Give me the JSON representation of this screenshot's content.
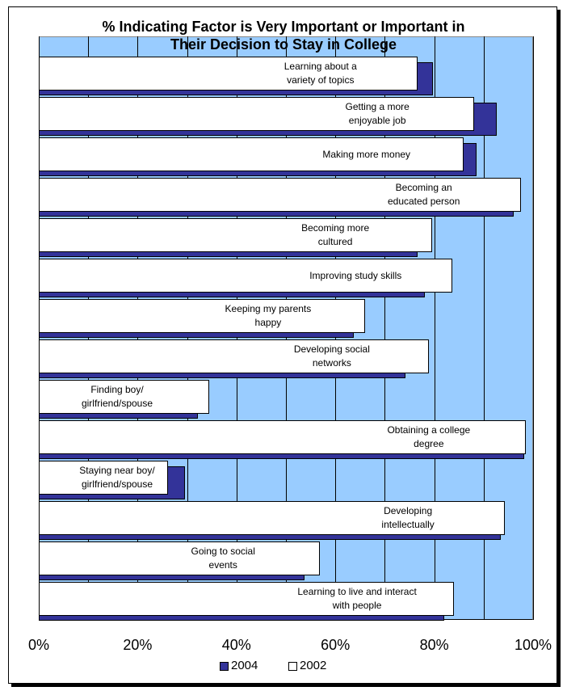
{
  "chart_data": {
    "type": "bar",
    "orientation": "horizontal",
    "title": "% Indicating Factor is Very Important or Important in\nTheir Decision to Stay in College",
    "categories": [
      "Learning about a\nvariety of topics",
      "Getting a more\nenjoyable job",
      "Making more money",
      "Becoming an\neducated person",
      "Becoming more\ncultured",
      "Improving study skills",
      "Keeping my parents\nhappy",
      "Developing social\nnetworks",
      "Finding boy/\ngirlfriend/spouse",
      "Obtaining a  college\ndegree",
      "Staying near boy/\ngirlfriend/spouse",
      "Developing\nintellectually",
      "Going to social\nevents",
      "Learning to live and interact\nwith people"
    ],
    "series": [
      {
        "name": "2004",
        "color": "#333399",
        "values": [
          79.7,
          92.6,
          88.6,
          96.1,
          76.6,
          78.1,
          63.7,
          74.2,
          32.2,
          98.2,
          29.6,
          93.5,
          53.8,
          82.0
        ]
      },
      {
        "name": "2002",
        "color": "#ffffff",
        "values": [
          76.6,
          88.1,
          85.9,
          97.5,
          79.6,
          83.7,
          66.0,
          78.9,
          34.5,
          98.5,
          26.1,
          94.3,
          56.9,
          84.0
        ]
      }
    ],
    "xlim": [
      0,
      100
    ],
    "xticks": [
      {
        "value": 0,
        "label": "0%"
      },
      {
        "value": 20,
        "label": "20%"
      },
      {
        "value": 40,
        "label": "40%"
      },
      {
        "value": 60,
        "label": "60%"
      },
      {
        "value": 80,
        "label": "80%"
      },
      {
        "value": 100,
        "label": "100%"
      }
    ],
    "minor_xticks": [
      10,
      30,
      50,
      70,
      90
    ],
    "grid": true,
    "legend": "bottom"
  }
}
